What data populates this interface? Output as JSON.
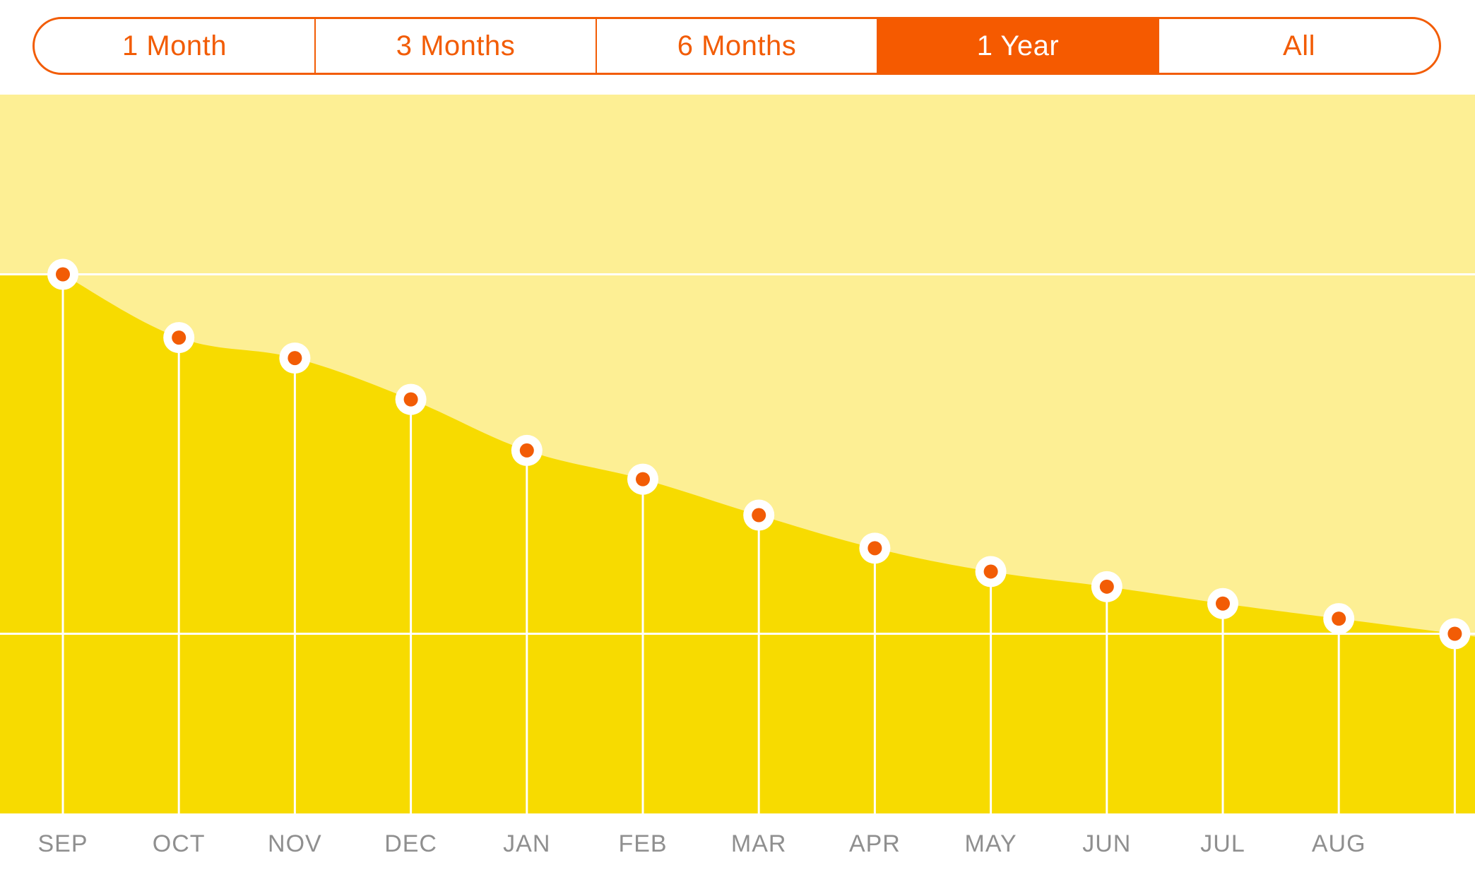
{
  "range_selector": {
    "options": [
      "1 Month",
      "3 Months",
      "6 Months",
      "1 Year",
      "All"
    ],
    "selected_index": 3
  },
  "colors": {
    "accent": "#f55a00",
    "plot_background": "#fdef94",
    "area_fill": "#f7db00",
    "gridline": "#ffffff",
    "marker": "#f25c05",
    "marker_ring": "#ffffff",
    "tick_label": "#8f8f8f"
  },
  "chart_data": {
    "type": "area",
    "title": "",
    "xlabel": "",
    "ylabel": "",
    "categories": [
      "SEP",
      "OCT",
      "NOV",
      "DEC",
      "JAN",
      "FEB",
      "MAR",
      "APR",
      "MAY",
      "JUN",
      "JUL",
      "AUG",
      ""
    ],
    "series": [
      {
        "values": [
          100,
          82.4,
          76.7,
          65.2,
          51.0,
          43.0,
          33.0,
          23.8,
          17.3,
          13.1,
          8.4,
          4.2,
          0
        ]
      }
    ],
    "ylim": [
      -50,
      150
    ],
    "reference_lines": [
      100,
      0
    ],
    "grid": true,
    "legend": "none",
    "markers": true,
    "smooth": true
  }
}
